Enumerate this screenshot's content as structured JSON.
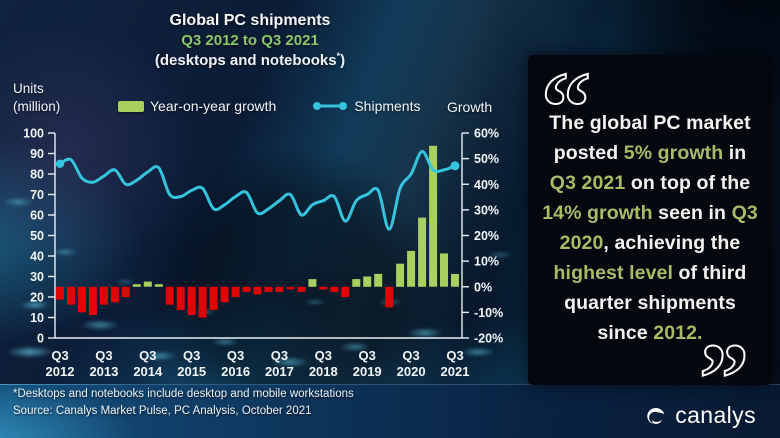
{
  "header": {
    "title": "Global PC shipments",
    "subtitle": "Q3 2012 to Q3 2021",
    "subnote_left": "(desktops and notebooks",
    "subnote_star": "*",
    "subnote_right": ")"
  },
  "axis_labels": {
    "left_line1": "Units",
    "left_line2": "(million)",
    "right": "Growth"
  },
  "legend": [
    {
      "label": "Year-on-year growth",
      "type": "bar",
      "color": "#a9d05f"
    },
    {
      "label": "Shipments",
      "type": "line",
      "color": "#35c3de"
    }
  ],
  "chart_data": {
    "type": "bar+line combo",
    "title": "Global PC shipments Q3 2012 to Q3 2021 (desktops and notebooks)",
    "quarters": [
      "Q3 2012",
      "Q4 2012",
      "Q1 2013",
      "Q2 2013",
      "Q3 2013",
      "Q4 2013",
      "Q1 2014",
      "Q2 2014",
      "Q3 2014",
      "Q4 2014",
      "Q1 2015",
      "Q2 2015",
      "Q3 2015",
      "Q4 2015",
      "Q1 2016",
      "Q2 2016",
      "Q3 2016",
      "Q4 2016",
      "Q1 2017",
      "Q2 2017",
      "Q3 2017",
      "Q4 2017",
      "Q1 2018",
      "Q2 2018",
      "Q3 2018",
      "Q4 2018",
      "Q1 2019",
      "Q2 2019",
      "Q3 2019",
      "Q4 2019",
      "Q1 2020",
      "Q2 2020",
      "Q3 2020",
      "Q4 2020",
      "Q1 2021",
      "Q2 2021",
      "Q3 2021"
    ],
    "series": [
      {
        "name": "Year-on-year growth",
        "type": "bar",
        "unit": "%",
        "values": [
          -5,
          -7,
          -10,
          -11,
          -7,
          -6,
          -4,
          1,
          2,
          1,
          -7,
          -9,
          -11,
          -12,
          -9,
          -6,
          -4,
          -2,
          -3,
          -2,
          -2,
          -1,
          -2,
          3,
          -1,
          -2,
          -4,
          3,
          4,
          5,
          -8,
          9,
          14,
          27,
          55,
          13,
          5
        ]
      },
      {
        "name": "Shipments",
        "type": "line",
        "unit": "million units",
        "values": [
          85,
          87,
          78,
          76,
          79,
          82,
          75,
          77,
          81,
          83,
          70,
          69,
          72,
          73,
          63,
          65,
          69,
          71,
          61,
          63,
          67,
          70,
          60,
          65,
          67,
          69,
          57,
          67,
          70,
          72,
          53,
          73,
          80,
          91,
          82,
          82,
          84
        ]
      }
    ],
    "x_ticks": [
      {
        "q": "Q3",
        "year": "2012"
      },
      {
        "q": "Q3",
        "year": "2013"
      },
      {
        "q": "Q3",
        "year": "2014"
      },
      {
        "q": "Q3",
        "year": "2015"
      },
      {
        "q": "Q3",
        "year": "2016"
      },
      {
        "q": "Q3",
        "year": "2017"
      },
      {
        "q": "Q3",
        "year": "2018"
      },
      {
        "q": "Q3",
        "year": "2019"
      },
      {
        "q": "Q3",
        "year": "2020"
      },
      {
        "q": "Q3",
        "year": "2021"
      }
    ],
    "left_axis": {
      "label": "Units (million)",
      "min": 0,
      "max": 100,
      "step": 10,
      "ticks": [
        "100",
        "90",
        "80",
        "70",
        "60",
        "50",
        "40",
        "30",
        "20",
        "10",
        "0"
      ]
    },
    "right_axis": {
      "label": "Growth",
      "min": -20,
      "max": 60,
      "step": 10,
      "ticks": [
        "60%",
        "50%",
        "40%",
        "30%",
        "20%",
        "10%",
        "0%",
        "-10%",
        "-20%"
      ]
    },
    "grid": "off",
    "legend_position": "top",
    "colors": {
      "bar_positive": "#a9d05f",
      "bar_negative": "#e00606",
      "line": "#35c3de",
      "axis": "#e9eff5"
    }
  },
  "quote": {
    "open_mark": "“",
    "close_mark": "”",
    "segments": [
      {
        "text": "The global PC market posted ",
        "color": "white"
      },
      {
        "text": "5% growth",
        "color": "green"
      },
      {
        "text": " in ",
        "color": "white"
      },
      {
        "text": "Q3 2021",
        "color": "green"
      },
      {
        "text": " on top of the ",
        "color": "white"
      },
      {
        "text": "14% growth",
        "color": "green"
      },
      {
        "text": " seen in ",
        "color": "white"
      },
      {
        "text": "Q3 2020",
        "color": "green"
      },
      {
        "text": ", achieving the ",
        "color": "white"
      },
      {
        "text": "highest level",
        "color": "green"
      },
      {
        "text": " of third quarter shipments since ",
        "color": "white"
      },
      {
        "text": "2012.",
        "color": "green"
      }
    ]
  },
  "footer": {
    "footnote": "*Desktops and notebooks include desktop and mobile workstations",
    "source": "Source: Canalys Market Pulse, PC Analysis, October 2021"
  },
  "logo": {
    "text": "canalys"
  }
}
